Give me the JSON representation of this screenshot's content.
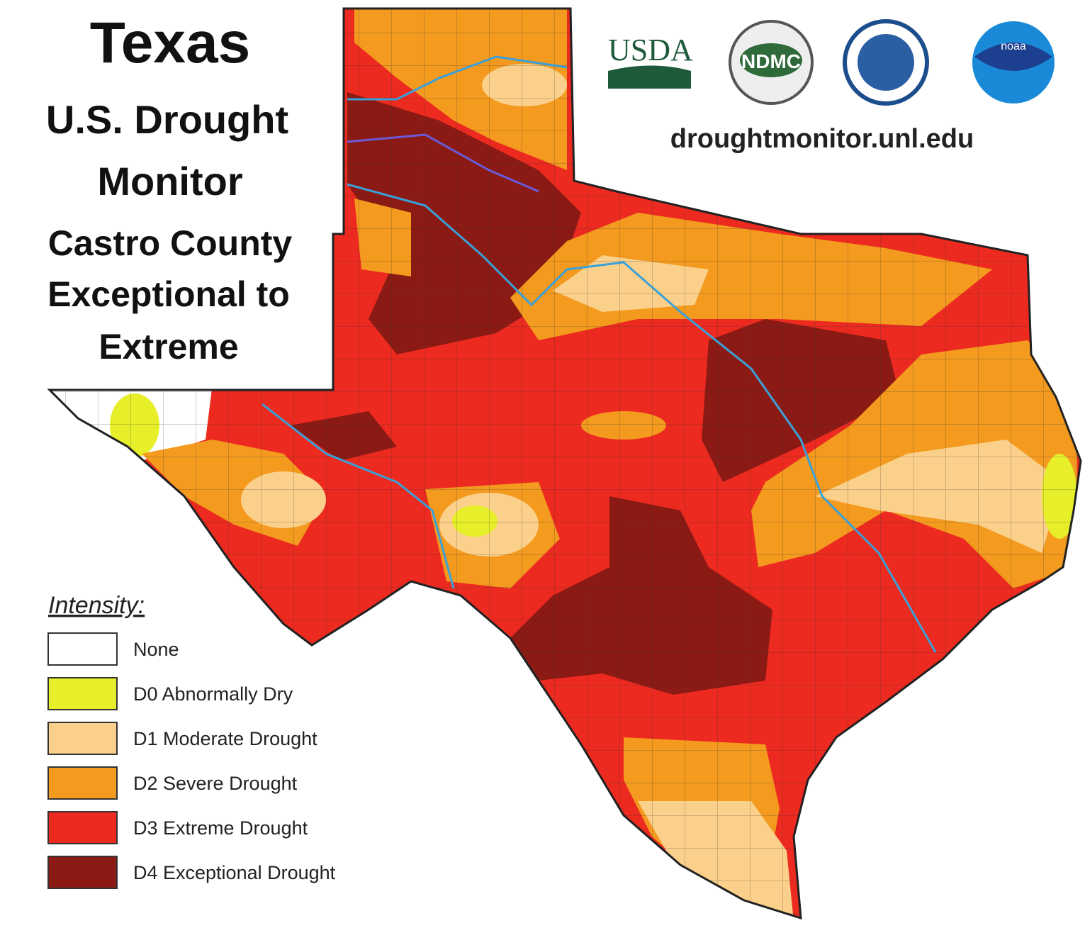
{
  "header": {
    "title_lines": [
      "Texas",
      "U.S. Drought",
      "Monitor",
      "Castro County",
      "Exceptional to",
      "Extreme"
    ]
  },
  "logos": {
    "usda": "USDA",
    "ndmc": "NDMC",
    "noaa": "noaa"
  },
  "url": "droughtmonitor.unl.edu",
  "legend": {
    "title": "Intensity:",
    "items": [
      {
        "label": "None",
        "color": "#ffffff"
      },
      {
        "label": "D0 Abnormally Dry",
        "color": "#e6ef2a"
      },
      {
        "label": "D1 Moderate Drought",
        "color": "#fbd08a"
      },
      {
        "label": "D2 Severe Drought",
        "color": "#f39a1f"
      },
      {
        "label": "D3 Extreme Drought",
        "color": "#ec2a1f"
      },
      {
        "label": "D4 Exceptional Drought",
        "color": "#8c1a14"
      }
    ]
  }
}
